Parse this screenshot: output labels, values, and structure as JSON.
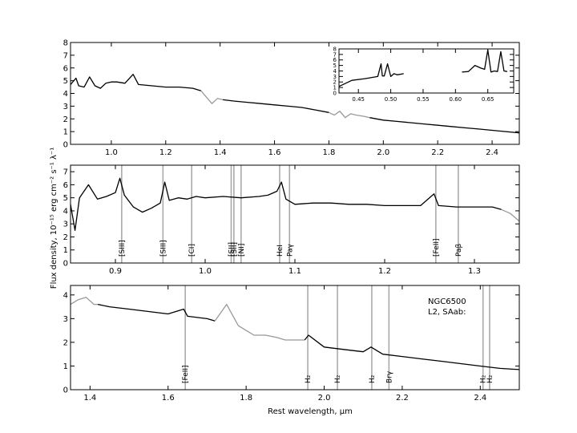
{
  "figure": {
    "ylabel": "Flux density, 10⁻¹⁵ erg cm⁻² s⁻¹ λ⁻¹",
    "xlabel": "Rest wavelength, μm"
  },
  "chart_data": [
    {
      "type": "line",
      "panel": "top",
      "xlim": [
        0.85,
        2.5
      ],
      "ylim": [
        0,
        8
      ],
      "xticks": [
        "1.0",
        "1.2",
        "1.4",
        "1.6",
        "1.8",
        "2.0",
        "2.2",
        "2.4"
      ],
      "xtick_values": [
        1.0,
        1.2,
        1.4,
        1.6,
        1.8,
        2.0,
        2.2,
        2.4
      ],
      "yticks": [
        "0",
        "1",
        "2",
        "3",
        "4",
        "5",
        "6",
        "7",
        "8"
      ],
      "ytick_values": [
        0,
        1,
        2,
        3,
        4,
        5,
        6,
        7,
        8
      ],
      "colors": {
        "good": "#000000",
        "telluric": "#999999"
      },
      "series": [
        {
          "x": [
            0.85,
            0.87,
            0.88,
            0.9,
            0.92,
            0.94,
            0.96,
            0.98,
            1.0,
            1.02,
            1.05,
            1.08,
            1.1,
            1.15,
            1.2,
            1.25,
            1.3,
            1.33
          ],
          "y": [
            4.7,
            5.2,
            4.6,
            4.5,
            5.3,
            4.6,
            4.4,
            4.8,
            4.9,
            4.9,
            4.8,
            5.5,
            4.7,
            4.6,
            4.5,
            4.5,
            4.4,
            4.2
          ]
        },
        {
          "x": [
            1.33,
            1.35,
            1.37,
            1.39,
            1.41
          ],
          "y": [
            4.2,
            3.7,
            3.2,
            3.6,
            3.5
          ],
          "style": "telluric"
        },
        {
          "x": [
            1.41,
            1.45,
            1.5,
            1.55,
            1.6,
            1.65,
            1.7,
            1.75,
            1.8
          ],
          "y": [
            3.5,
            3.4,
            3.3,
            3.2,
            3.1,
            3.0,
            2.9,
            2.7,
            2.5
          ]
        },
        {
          "x": [
            1.8,
            1.82,
            1.84,
            1.86,
            1.88,
            1.9,
            1.93,
            1.95
          ],
          "y": [
            2.5,
            2.3,
            2.6,
            2.1,
            2.4,
            2.3,
            2.2,
            2.1
          ],
          "style": "telluric"
        },
        {
          "x": [
            1.95,
            2.0,
            2.05,
            2.1,
            2.15,
            2.2,
            2.25,
            2.3,
            2.35,
            2.4,
            2.45,
            2.5
          ],
          "y": [
            2.1,
            1.9,
            1.8,
            1.7,
            1.6,
            1.5,
            1.4,
            1.3,
            1.2,
            1.1,
            1.0,
            0.9
          ]
        }
      ],
      "inset": {
        "xlim": [
          0.42,
          0.69
        ],
        "ylim": [
          0,
          8
        ],
        "xticks": [
          "0.45",
          "0.50",
          "0.55",
          "0.60",
          "0.65"
        ],
        "xtick_values": [
          0.45,
          0.5,
          0.55,
          0.6,
          0.65
        ],
        "yticks": [
          "0",
          "1",
          "2",
          "3",
          "4",
          "5",
          "6",
          "7",
          "8"
        ],
        "ytick_values": [
          0,
          1,
          2,
          3,
          4,
          5,
          6,
          7,
          8
        ],
        "series": [
          {
            "x": [
              0.42,
              0.44,
              0.46,
              0.48,
              0.485,
              0.487,
              0.49,
              0.495,
              0.5,
              0.505,
              0.51,
              0.52
            ],
            "y": [
              1.2,
              2.3,
              2.6,
              3.0,
              5.3,
              3.1,
              3.1,
              5.3,
              3.0,
              3.5,
              3.3,
              3.5
            ]
          },
          {
            "x": [
              0.61,
              0.62,
              0.63,
              0.64,
              0.645,
              0.65,
              0.655,
              0.66,
              0.665,
              0.67,
              0.675,
              0.68
            ],
            "y": [
              3.8,
              3.9,
              5.0,
              4.5,
              4.3,
              7.8,
              3.8,
              4.0,
              3.9,
              7.5,
              4.0,
              3.9
            ]
          }
        ]
      }
    },
    {
      "type": "line",
      "panel": "middle",
      "xlim": [
        0.85,
        1.35
      ],
      "ylim": [
        0,
        7.5
      ],
      "xticks": [
        "0.9",
        "1.0",
        "1.1",
        "1.2",
        "1.3"
      ],
      "xtick_values": [
        0.9,
        1.0,
        1.1,
        1.2,
        1.3
      ],
      "yticks": [
        "0",
        "1",
        "2",
        "3",
        "4",
        "5",
        "6",
        "7"
      ],
      "ytick_values": [
        0,
        1,
        2,
        3,
        4,
        5,
        6,
        7
      ],
      "series": [
        {
          "x": [
            0.85,
            0.855,
            0.86,
            0.87,
            0.88,
            0.89,
            0.9,
            0.905,
            0.91,
            0.92,
            0.93,
            0.94,
            0.95,
            0.955,
            0.96,
            0.97,
            0.98,
            0.99,
            1.0,
            1.02,
            1.04,
            1.06,
            1.07,
            1.08,
            1.085,
            1.09,
            1.1,
            1.12,
            1.14,
            1.16,
            1.18,
            1.2,
            1.22,
            1.24,
            1.255,
            1.26,
            1.28,
            1.3,
            1.32,
            1.33
          ],
          "y": [
            4.5,
            2.5,
            5.0,
            6.0,
            4.9,
            5.1,
            5.4,
            6.5,
            5.2,
            4.3,
            3.9,
            4.2,
            4.6,
            6.2,
            4.8,
            5.0,
            4.9,
            5.1,
            5.0,
            5.1,
            5.0,
            5.1,
            5.2,
            5.5,
            6.2,
            4.9,
            4.5,
            4.6,
            4.6,
            4.5,
            4.5,
            4.4,
            4.4,
            4.4,
            5.3,
            4.4,
            4.3,
            4.3,
            4.3,
            4.1
          ]
        },
        {
          "x": [
            1.33,
            1.34,
            1.35
          ],
          "y": [
            4.1,
            3.8,
            3.2
          ],
          "style": "telluric"
        }
      ],
      "lines": [
        {
          "x": 0.907,
          "label": "[SIII]"
        },
        {
          "x": 0.953,
          "label": "[SIII]"
        },
        {
          "x": 0.985,
          "label": "[CI]"
        },
        {
          "x": 1.029,
          "label": "[SII]"
        },
        {
          "x": 1.032,
          "label": "[SII]"
        },
        {
          "x": 1.04,
          "label": "[NI]"
        },
        {
          "x": 1.083,
          "label": "HeI"
        },
        {
          "x": 1.094,
          "label": "Paγ"
        },
        {
          "x": 1.257,
          "label": "[FeII]"
        },
        {
          "x": 1.282,
          "label": "Paβ"
        }
      ]
    },
    {
      "type": "line",
      "panel": "bottom",
      "xlim": [
        1.35,
        2.5
      ],
      "ylim": [
        0,
        4.4
      ],
      "xticks": [
        "1.4",
        "1.6",
        "1.8",
        "2.0",
        "2.2",
        "2.4"
      ],
      "xtick_values": [
        1.4,
        1.6,
        1.8,
        2.0,
        2.2,
        2.4
      ],
      "yticks": [
        "0",
        "1",
        "2",
        "3",
        "4"
      ],
      "ytick_values": [
        0,
        1,
        2,
        3,
        4
      ],
      "annotation": [
        "NGC6500",
        "L2,  SAab:"
      ],
      "series": [
        {
          "x": [
            1.35,
            1.37,
            1.39,
            1.41,
            1.42
          ],
          "y": [
            3.6,
            3.8,
            3.9,
            3.6,
            3.6
          ],
          "style": "telluric"
        },
        {
          "x": [
            1.42,
            1.45,
            1.5,
            1.55,
            1.6,
            1.64,
            1.65,
            1.7,
            1.72
          ],
          "y": [
            3.6,
            3.5,
            3.4,
            3.3,
            3.2,
            3.4,
            3.1,
            3.0,
            2.9
          ]
        },
        {
          "x": [
            1.72,
            1.75,
            1.78,
            1.8,
            1.82,
            1.85,
            1.88,
            1.9,
            1.95
          ],
          "y": [
            2.9,
            3.6,
            2.7,
            2.5,
            2.3,
            2.3,
            2.2,
            2.1,
            2.1
          ],
          "style": "telluric"
        },
        {
          "x": [
            1.95,
            1.96,
            2.0,
            2.05,
            2.1,
            2.12,
            2.15,
            2.2,
            2.25,
            2.3,
            2.35,
            2.4,
            2.45,
            2.5
          ],
          "y": [
            2.1,
            2.3,
            1.8,
            1.7,
            1.6,
            1.8,
            1.5,
            1.4,
            1.3,
            1.2,
            1.1,
            1.0,
            0.9,
            0.85
          ]
        }
      ],
      "lines": [
        {
          "x": 1.644,
          "label": "[FeII]"
        },
        {
          "x": 1.958,
          "label": "H₂"
        },
        {
          "x": 2.034,
          "label": "H₂"
        },
        {
          "x": 2.122,
          "label": "H₂"
        },
        {
          "x": 2.166,
          "label": "Brγ"
        },
        {
          "x": 2.407,
          "label": "H₂"
        },
        {
          "x": 2.424,
          "label": "H₂"
        }
      ]
    }
  ]
}
